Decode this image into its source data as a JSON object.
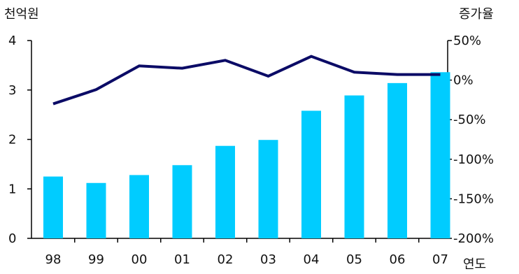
{
  "colors": {
    "bar": "#00CCFF",
    "line": "#0B0B66",
    "axis": "#000000",
    "text": "#111111"
  },
  "chart_data": {
    "type": "bar",
    "categories": [
      "98",
      "99",
      "00",
      "01",
      "02",
      "03",
      "04",
      "05",
      "06",
      "07"
    ],
    "series": [
      {
        "type": "bar",
        "axis": "left",
        "values": [
          1.25,
          1.12,
          1.28,
          1.48,
          1.87,
          1.99,
          2.58,
          2.89,
          3.14,
          3.36
        ]
      },
      {
        "type": "line",
        "axis": "right",
        "values": [
          -30,
          -12,
          18,
          15,
          25,
          5,
          30,
          10,
          7,
          7
        ]
      }
    ],
    "xlabel": "연도",
    "ylabel": "천억원",
    "y2label": "증가율",
    "ylim": [
      0,
      4
    ],
    "yticks": [
      "0",
      "1",
      "2",
      "3",
      "4"
    ],
    "y2lim": [
      -200,
      50
    ],
    "y2ticks": [
      "-200%",
      "-150%",
      "-100%",
      "-50%",
      "0%",
      "50%"
    ],
    "grid": false,
    "legend": "none"
  }
}
